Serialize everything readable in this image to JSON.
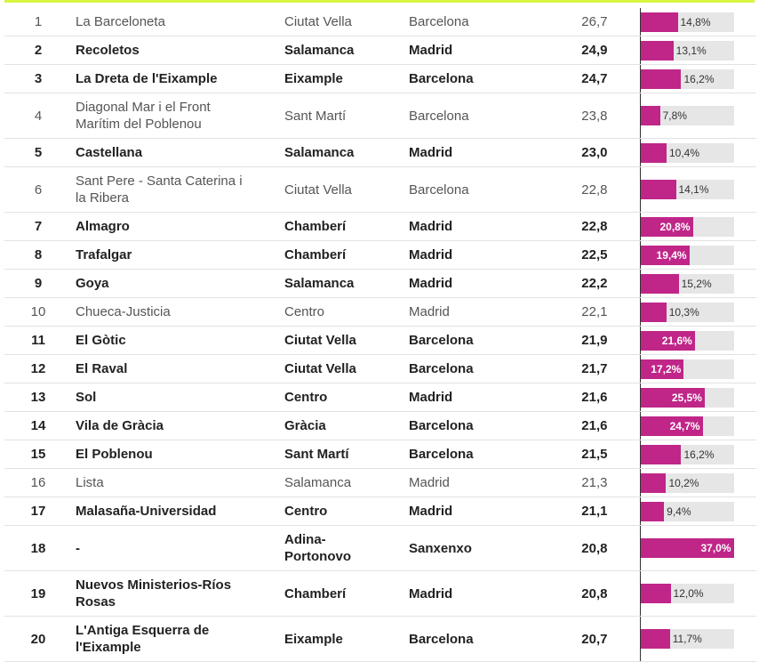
{
  "table": {
    "rows": [
      {
        "rank": 1,
        "name": "La Barceloneta",
        "district": "Ciutat Vella",
        "city": "Barcelona",
        "value": "26,7",
        "share": 14.8,
        "share_label": "14,8%",
        "bold": false
      },
      {
        "rank": 2,
        "name": "Recoletos",
        "district": "Salamanca",
        "city": "Madrid",
        "value": "24,9",
        "share": 13.1,
        "share_label": "13,1%",
        "bold": true
      },
      {
        "rank": 3,
        "name": "La Dreta de l'Eixample",
        "district": "Eixample",
        "city": "Barcelona",
        "value": "24,7",
        "share": 16.2,
        "share_label": "16,2%",
        "bold": true
      },
      {
        "rank": 4,
        "name": "Diagonal Mar i el Front Marítim del Poblenou",
        "district": "Sant Martí",
        "city": "Barcelona",
        "value": "23,8",
        "share": 7.8,
        "share_label": "7,8%",
        "bold": false
      },
      {
        "rank": 5,
        "name": "Castellana",
        "district": "Salamanca",
        "city": "Madrid",
        "value": "23,0",
        "share": 10.4,
        "share_label": "10,4%",
        "bold": true
      },
      {
        "rank": 6,
        "name": "Sant Pere - Santa Caterina i la Ribera",
        "district": "Ciutat Vella",
        "city": "Barcelona",
        "value": "22,8",
        "share": 14.1,
        "share_label": "14,1%",
        "bold": false
      },
      {
        "rank": 7,
        "name": "Almagro",
        "district": "Chamberí",
        "city": "Madrid",
        "value": "22,8",
        "share": 20.8,
        "share_label": "20,8%",
        "bold": true
      },
      {
        "rank": 8,
        "name": "Trafalgar",
        "district": "Chamberí",
        "city": "Madrid",
        "value": "22,5",
        "share": 19.4,
        "share_label": "19,4%",
        "bold": true
      },
      {
        "rank": 9,
        "name": "Goya",
        "district": "Salamanca",
        "city": "Madrid",
        "value": "22,2",
        "share": 15.2,
        "share_label": "15,2%",
        "bold": true
      },
      {
        "rank": 10,
        "name": "Chueca-Justicia",
        "district": "Centro",
        "city": "Madrid",
        "value": "22,1",
        "share": 10.3,
        "share_label": "10,3%",
        "bold": false
      },
      {
        "rank": 11,
        "name": "El Gòtic",
        "district": "Ciutat Vella",
        "city": "Barcelona",
        "value": "21,9",
        "share": 21.6,
        "share_label": "21,6%",
        "bold": true
      },
      {
        "rank": 12,
        "name": "El Raval",
        "district": "Ciutat Vella",
        "city": "Barcelona",
        "value": "21,7",
        "share": 17.2,
        "share_label": "17,2%",
        "bold": true
      },
      {
        "rank": 13,
        "name": "Sol",
        "district": "Centro",
        "city": "Madrid",
        "value": "21,6",
        "share": 25.5,
        "share_label": "25,5%",
        "bold": true
      },
      {
        "rank": 14,
        "name": "Vila de Gràcia",
        "district": "Gràcia",
        "city": "Barcelona",
        "value": "21,6",
        "share": 24.7,
        "share_label": "24,7%",
        "bold": true
      },
      {
        "rank": 15,
        "name": "El Poblenou",
        "district": "Sant Martí",
        "city": "Barcelona",
        "value": "21,5",
        "share": 16.2,
        "share_label": "16,2%",
        "bold": true
      },
      {
        "rank": 16,
        "name": "Lista",
        "district": "Salamanca",
        "city": "Madrid",
        "value": "21,3",
        "share": 10.2,
        "share_label": "10,2%",
        "bold": false
      },
      {
        "rank": 17,
        "name": "Malasaña-Universidad",
        "district": "Centro",
        "city": "Madrid",
        "value": "21,1",
        "share": 9.4,
        "share_label": "9,4%",
        "bold": true
      },
      {
        "rank": 18,
        "name": "-",
        "district": "Adina-Portonovo",
        "city": "Sanxenxo",
        "value": "20,8",
        "share": 37.0,
        "share_label": "37,0%",
        "bold": true
      },
      {
        "rank": 19,
        "name": "Nuevos Ministerios-Ríos Rosas",
        "district": "Chamberí",
        "city": "Madrid",
        "value": "20,8",
        "share": 12.0,
        "share_label": "12,0%",
        "bold": true
      },
      {
        "rank": 20,
        "name": "L'Antiga Esquerra de l'Eixample",
        "district": "Eixample",
        "city": "Barcelona",
        "value": "20,7",
        "share": 11.7,
        "share_label": "11,7%",
        "bold": true
      }
    ]
  }
}
